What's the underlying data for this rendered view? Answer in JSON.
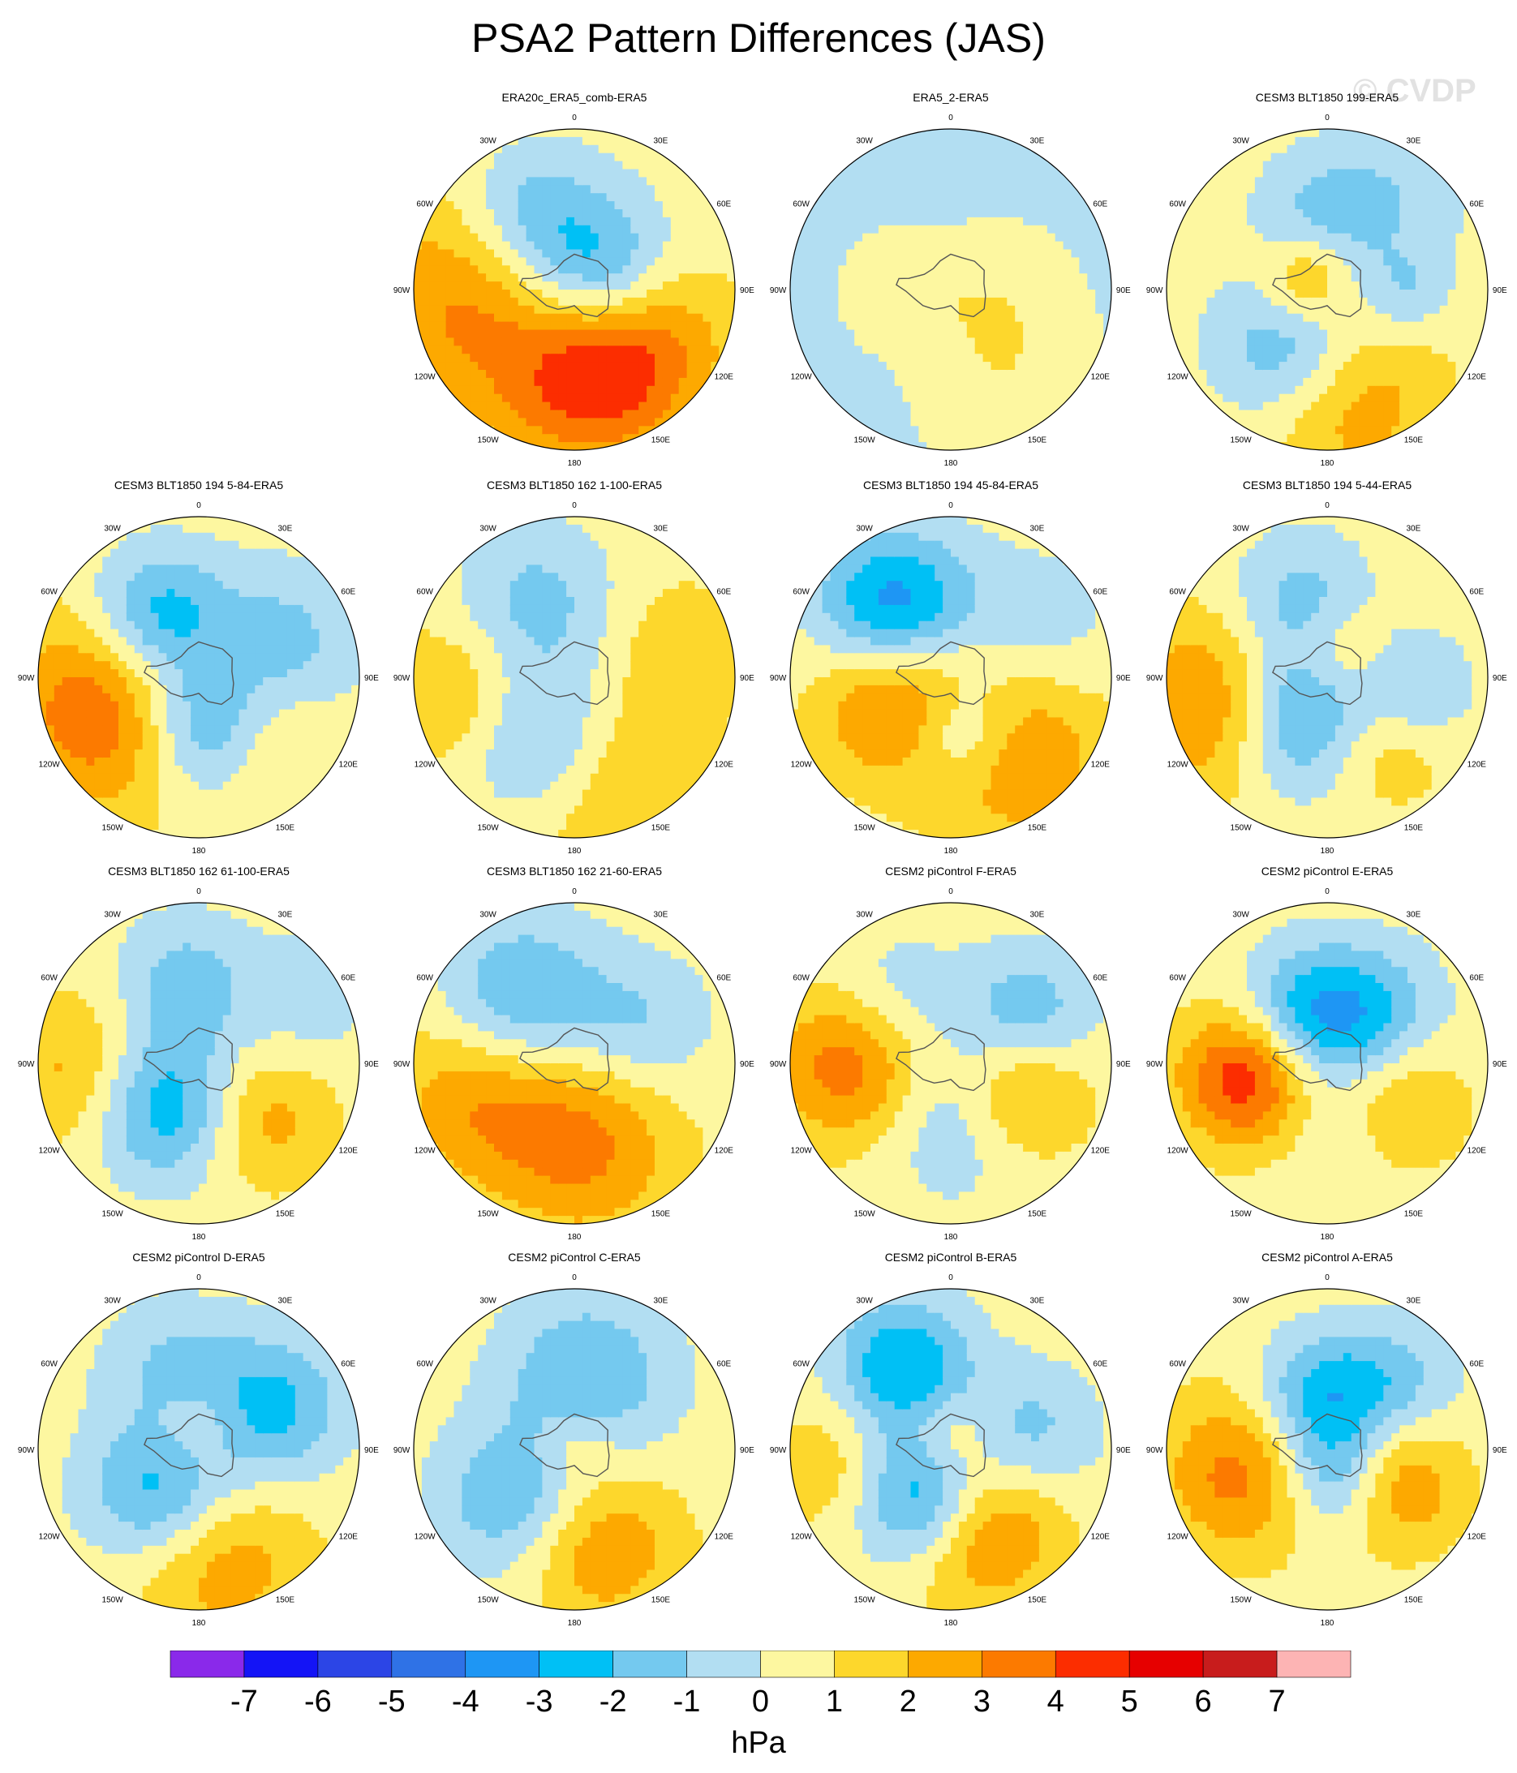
{
  "title": "PSA2 Pattern Differences (JAS)",
  "watermark": "© CVDP",
  "units": "hPa",
  "colorbar": {
    "colors": [
      "#8a29ea",
      "#1414f6",
      "#2c45e6",
      "#2f72e6",
      "#1e96f4",
      "#00c0f5",
      "#74c9ef",
      "#b2def2",
      "#fdf7a0",
      "#fdd72c",
      "#fda900",
      "#fc7a00",
      "#fc2d00",
      "#e60000",
      "#c81c1c",
      "#fdb4b4"
    ],
    "labels": [
      "-7",
      "-6",
      "-5",
      "-4",
      "-3",
      "-2",
      "-1",
      "0",
      "1",
      "2",
      "3",
      "4",
      "5",
      "6",
      "7"
    ]
  },
  "longitude_labels": [
    "0",
    "30E",
    "60E",
    "90E",
    "120E",
    "150E",
    "180",
    "150W",
    "120W",
    "90W",
    "60W",
    "30W"
  ],
  "panels": [
    {
      "title": "ERA20c_ERA5_comb-ERA5",
      "row": 0,
      "col": 1,
      "blobs": [
        {
          "lon": -100,
          "r": 0.62,
          "v": 3,
          "s": 0.5
        },
        {
          "lon": 140,
          "r": 0.45,
          "v": 4.5,
          "s": 0.42
        },
        {
          "lon": 60,
          "r": 0.2,
          "v": -3,
          "s": 0.3
        },
        {
          "lon": 0,
          "r": 0.0,
          "v": -2,
          "s": 0.45
        },
        {
          "lon": -30,
          "r": 0.55,
          "v": -2,
          "s": 0.3
        },
        {
          "lon": 180,
          "r": 0.7,
          "v": 1.5,
          "s": 0.35
        }
      ]
    },
    {
      "title": "ERA5_2-ERA5",
      "row": 0,
      "col": 2,
      "blobs": [
        {
          "lon": 0,
          "r": 0.0,
          "v": -0.9,
          "s": 1.4
        },
        {
          "lon": -90,
          "r": 0.3,
          "v": 1.1,
          "s": 0.25
        },
        {
          "lon": 90,
          "r": 0.3,
          "v": 0.9,
          "s": 0.3
        },
        {
          "lon": 150,
          "r": 0.6,
          "v": 1.1,
          "s": 0.35
        }
      ]
    },
    {
      "title": "CESM3 BLT1850 199-ERA5",
      "row": 0,
      "col": 3,
      "blobs": [
        {
          "lon": -150,
          "r": 0.45,
          "v": -3,
          "s": 0.33
        },
        {
          "lon": 170,
          "r": 0.68,
          "v": 2.5,
          "s": 0.4
        },
        {
          "lon": 0,
          "r": 0.45,
          "v": -2,
          "s": 0.3
        },
        {
          "lon": -60,
          "r": 0.15,
          "v": 2.5,
          "s": 0.2
        },
        {
          "lon": 90,
          "r": 0.5,
          "v": -1.5,
          "s": 0.2
        },
        {
          "lon": 40,
          "r": 0.85,
          "v": -1,
          "s": 0.3
        }
      ]
    },
    {
      "title": "CESM3 BLT1850 194 5-84-ERA5",
      "row": 1,
      "col": 0,
      "blobs": [
        {
          "lon": -110,
          "r": 0.6,
          "v": 3.6,
          "s": 0.45
        },
        {
          "lon": 175,
          "r": 0.32,
          "v": -3.5,
          "s": 0.3
        },
        {
          "lon": -35,
          "r": 0.45,
          "v": -3.5,
          "s": 0.3
        },
        {
          "lon": 70,
          "r": 0.55,
          "v": -2,
          "s": 0.35
        },
        {
          "lon": 130,
          "r": 0.55,
          "v": 1.5,
          "s": 0.3
        }
      ]
    },
    {
      "title": "CESM3 BLT1850 162 1-100-ERA5",
      "row": 1,
      "col": 1,
      "blobs": [
        {
          "lon": -150,
          "r": 0.45,
          "v": -3,
          "s": 0.35
        },
        {
          "lon": -30,
          "r": 0.5,
          "v": -2,
          "s": 0.35
        },
        {
          "lon": 160,
          "r": 0.65,
          "v": 2,
          "s": 0.45
        },
        {
          "lon": -100,
          "r": 0.7,
          "v": 2,
          "s": 0.35
        },
        {
          "lon": 70,
          "r": 0.7,
          "v": 1,
          "s": 0.3
        }
      ]
    },
    {
      "title": "CESM3 BLT1850 194 45-84-ERA5",
      "row": 1,
      "col": 2,
      "blobs": [
        {
          "lon": -40,
          "r": 0.55,
          "v": -4.5,
          "s": 0.33
        },
        {
          "lon": -110,
          "r": 0.35,
          "v": 3.5,
          "s": 0.35
        },
        {
          "lon": 170,
          "r": 0.35,
          "v": -3,
          "s": 0.25
        },
        {
          "lon": 140,
          "r": 0.6,
          "v": 2.8,
          "s": 0.4
        },
        {
          "lon": 60,
          "r": 0.6,
          "v": -1.2,
          "s": 0.35
        }
      ]
    },
    {
      "title": "CESM3 BLT1850 194 5-44-ERA5",
      "row": 1,
      "col": 3,
      "blobs": [
        {
          "lon": -150,
          "r": 0.3,
          "v": -4,
          "s": 0.33
        },
        {
          "lon": -105,
          "r": 0.7,
          "v": 3,
          "s": 0.4
        },
        {
          "lon": 100,
          "r": 0.55,
          "v": -2,
          "s": 0.25
        },
        {
          "lon": 140,
          "r": 0.5,
          "v": 2,
          "s": 0.3
        },
        {
          "lon": -20,
          "r": 0.5,
          "v": -2,
          "s": 0.3
        },
        {
          "lon": 30,
          "r": 0.2,
          "v": 1.5,
          "s": 0.2
        }
      ]
    },
    {
      "title": "CESM3 BLT1850 162 61-100-ERA5",
      "row": 2,
      "col": 0,
      "blobs": [
        {
          "lon": -140,
          "r": 0.35,
          "v": -3.5,
          "s": 0.32
        },
        {
          "lon": -95,
          "r": 0.75,
          "v": 2,
          "s": 0.35
        },
        {
          "lon": 130,
          "r": 0.55,
          "v": 2,
          "s": 0.3
        },
        {
          "lon": -10,
          "r": 0.5,
          "v": -2,
          "s": 0.3
        },
        {
          "lon": 60,
          "r": 0.8,
          "v": -1,
          "s": 0.3
        }
      ]
    },
    {
      "title": "CESM3 BLT1850 162 21-60-ERA5",
      "row": 2,
      "col": 1,
      "blobs": [
        {
          "lon": -40,
          "r": 0.5,
          "v": -3,
          "s": 0.35
        },
        {
          "lon": -110,
          "r": 0.6,
          "v": 2.5,
          "s": 0.4
        },
        {
          "lon": 170,
          "r": 0.55,
          "v": 2.5,
          "s": 0.4
        },
        {
          "lon": 60,
          "r": 0.5,
          "v": -1.5,
          "s": 0.3
        }
      ]
    },
    {
      "title": "CESM2 piControl F-ERA5",
      "row": 2,
      "col": 2,
      "blobs": [
        {
          "lon": -90,
          "r": 0.6,
          "v": 3.5,
          "s": 0.35
        },
        {
          "lon": 110,
          "r": 0.45,
          "v": 3,
          "s": 0.3
        },
        {
          "lon": 60,
          "r": 0.55,
          "v": -2.5,
          "s": 0.3
        },
        {
          "lon": 175,
          "r": 0.3,
          "v": -2,
          "s": 0.35
        },
        {
          "lon": -45,
          "r": 0.55,
          "v": -1.5,
          "s": 0.3
        }
      ]
    },
    {
      "title": "CESM2 piControl E-ERA5",
      "row": 2,
      "col": 3,
      "blobs": [
        {
          "lon": -100,
          "r": 0.5,
          "v": 4.5,
          "s": 0.3
        },
        {
          "lon": -20,
          "r": 0.3,
          "v": -3.5,
          "s": 0.3
        },
        {
          "lon": 120,
          "r": 0.5,
          "v": 2,
          "s": 0.3
        },
        {
          "lon": 45,
          "r": 0.45,
          "v": -2,
          "s": 0.3
        },
        {
          "lon": 170,
          "r": 0.4,
          "v": -1,
          "s": 0.3
        }
      ]
    },
    {
      "title": "CESM2 piControl D-ERA5",
      "row": 3,
      "col": 0,
      "blobs": [
        {
          "lon": -140,
          "r": 0.35,
          "v": -3.5,
          "s": 0.33
        },
        {
          "lon": 170,
          "r": 0.65,
          "v": 2.5,
          "s": 0.4
        },
        {
          "lon": 60,
          "r": 0.5,
          "v": -3,
          "s": 0.33
        },
        {
          "lon": 0,
          "r": 0.15,
          "v": 1.5,
          "s": 0.22
        },
        {
          "lon": -20,
          "r": 0.55,
          "v": -1.5,
          "s": 0.3
        }
      ]
    },
    {
      "title": "CESM2 piControl C-ERA5",
      "row": 3,
      "col": 1,
      "blobs": [
        {
          "lon": 10,
          "r": 0.45,
          "v": -2.5,
          "s": 0.38
        },
        {
          "lon": -130,
          "r": 0.5,
          "v": -2.5,
          "s": 0.33
        },
        {
          "lon": 165,
          "r": 0.62,
          "v": 2.5,
          "s": 0.35
        },
        {
          "lon": 0,
          "r": 0.05,
          "v": 1.2,
          "s": 0.18
        }
      ]
    },
    {
      "title": "CESM2 piControl B-ERA5",
      "row": 3,
      "col": 2,
      "blobs": [
        {
          "lon": -150,
          "r": 0.35,
          "v": -4.5,
          "s": 0.3
        },
        {
          "lon": -30,
          "r": 0.6,
          "v": -3.5,
          "s": 0.3
        },
        {
          "lon": 160,
          "r": 0.5,
          "v": 3.5,
          "s": 0.35
        },
        {
          "lon": 80,
          "r": 0.5,
          "v": -2,
          "s": 0.3
        },
        {
          "lon": -100,
          "r": 0.7,
          "v": 1.5,
          "s": 0.3
        },
        {
          "lon": 0,
          "r": 0.1,
          "v": 1.5,
          "s": 0.18
        }
      ]
    },
    {
      "title": "CESM2 piControl A-ERA5",
      "row": 3,
      "col": 3,
      "blobs": [
        {
          "lon": -105,
          "r": 0.55,
          "v": 3,
          "s": 0.35
        },
        {
          "lon": 115,
          "r": 0.45,
          "v": 3,
          "s": 0.3
        },
        {
          "lon": -10,
          "r": 0.3,
          "v": -3,
          "s": 0.28
        },
        {
          "lon": 160,
          "r": 0.2,
          "v": -3,
          "s": 0.25
        },
        {
          "lon": 45,
          "r": 0.55,
          "v": -2,
          "s": 0.3
        }
      ]
    }
  ]
}
